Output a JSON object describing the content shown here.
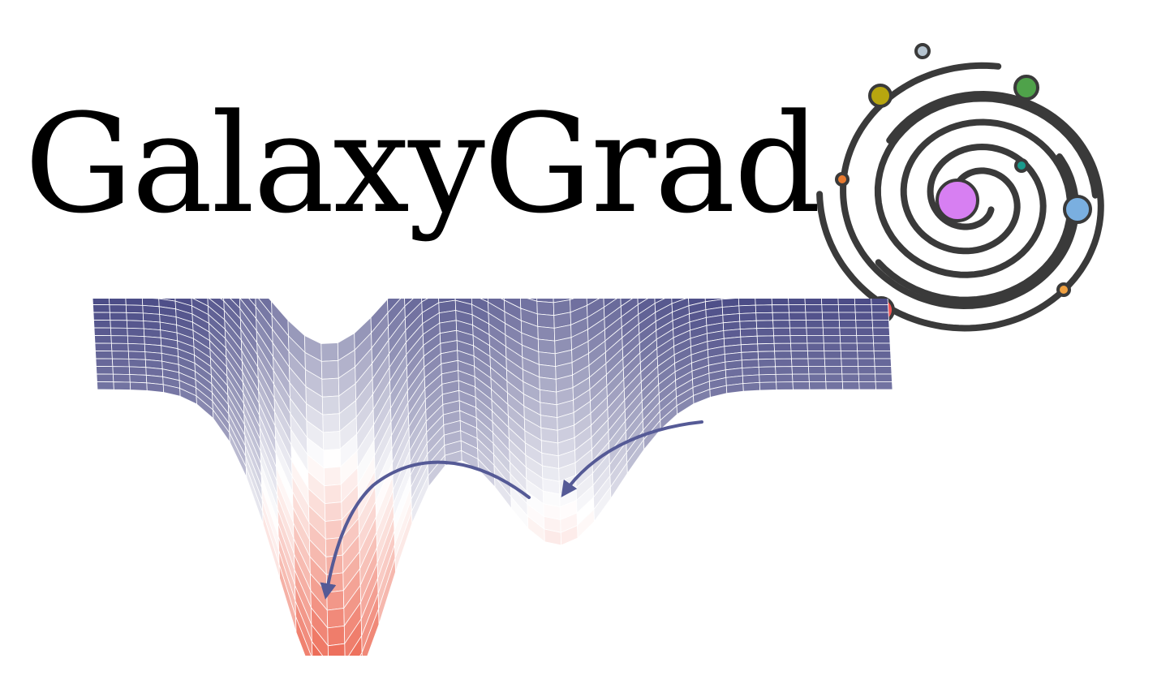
{
  "logo": {
    "wordmark": "GalaxyGrad",
    "text_color": "#000000",
    "icon_name": "spiral-galaxy-icon",
    "spiral_color": "#3a3a3a",
    "planets": [
      {
        "name": "core-planet",
        "color": "#d77ff2"
      },
      {
        "name": "teal-moon",
        "color": "#1a9a8c"
      },
      {
        "name": "orange-moon",
        "color": "#e87a30"
      },
      {
        "name": "yellow-planet",
        "color": "#b8a60f"
      },
      {
        "name": "green-planet",
        "color": "#4fa24a"
      },
      {
        "name": "blue-planet",
        "color": "#7aafe0"
      },
      {
        "name": "small-orange-moon",
        "color": "#f0a040"
      },
      {
        "name": "red-planet",
        "color": "#f25555"
      },
      {
        "name": "grey-moon",
        "color": "#b6c4d0"
      }
    ]
  },
  "illustration": {
    "icon_name": "loss-landscape-icon",
    "colors": {
      "high": "#2e2f73",
      "mid": "#ffffff",
      "low": "#e8442a",
      "grid": "#ffffff",
      "arrow": "#555a96"
    }
  }
}
